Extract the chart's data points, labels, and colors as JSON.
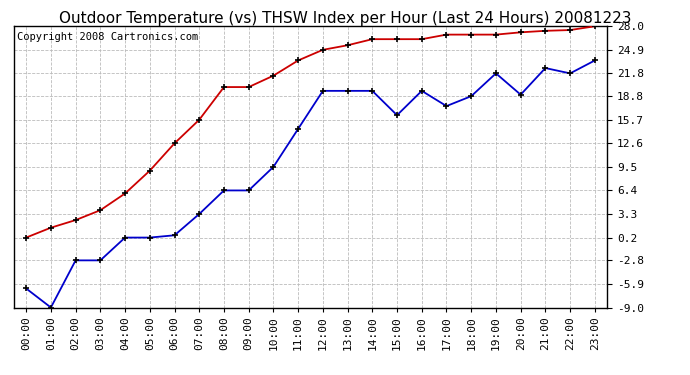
{
  "title": "Outdoor Temperature (vs) THSW Index per Hour (Last 24 Hours) 20081223",
  "copyright_text": "Copyright 2008 Cartronics.com",
  "x_labels": [
    "00:00",
    "01:00",
    "02:00",
    "03:00",
    "04:00",
    "05:00",
    "06:00",
    "07:00",
    "08:00",
    "09:00",
    "10:00",
    "11:00",
    "12:00",
    "13:00",
    "14:00",
    "15:00",
    "16:00",
    "17:00",
    "18:00",
    "19:00",
    "20:00",
    "21:00",
    "22:00",
    "23:00"
  ],
  "y_ticks": [
    28.0,
    24.9,
    21.8,
    18.8,
    15.7,
    12.6,
    9.5,
    6.4,
    3.3,
    0.2,
    -2.8,
    -5.9,
    -9.0
  ],
  "y_min": -9.0,
  "y_max": 28.0,
  "red_data": [
    0.2,
    1.5,
    2.5,
    3.8,
    6.0,
    9.0,
    12.6,
    15.7,
    20.0,
    20.0,
    21.5,
    23.5,
    24.9,
    25.5,
    26.3,
    26.3,
    26.3,
    26.9,
    26.9,
    26.9,
    27.2,
    27.4,
    27.5,
    28.0
  ],
  "blue_data": [
    -6.5,
    -9.0,
    -2.8,
    -2.8,
    0.2,
    0.2,
    0.5,
    3.3,
    6.4,
    6.4,
    9.5,
    14.5,
    19.5,
    19.5,
    19.5,
    16.3,
    19.5,
    17.5,
    18.8,
    21.8,
    19.0,
    22.5,
    21.8,
    23.5
  ],
  "red_color": "#cc0000",
  "blue_color": "#0000cc",
  "bg_color": "#ffffff",
  "plot_bg_color": "#ffffff",
  "grid_color": "#bbbbbb",
  "border_color": "#000000",
  "title_fontsize": 11,
  "tick_fontsize": 8,
  "copyright_fontsize": 7.5
}
